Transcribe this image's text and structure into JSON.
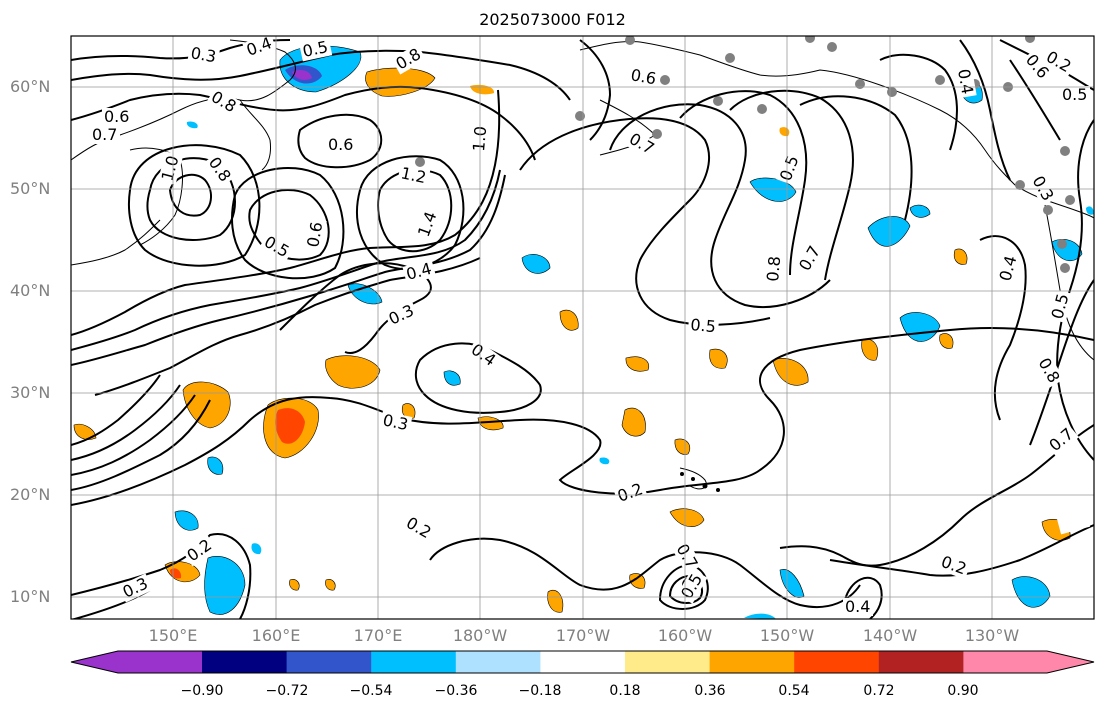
{
  "title": "2025073000 F012",
  "latitude_labels": [
    "60°N",
    "50°N",
    "40°N",
    "30°N",
    "20°N",
    "10°N"
  ],
  "longitude_labels": [
    "150°E",
    "160°E",
    "170°E",
    "180°W",
    "170°W",
    "160°W",
    "150°W",
    "140°W",
    "130°W"
  ],
  "contour_labels": [
    "0.3",
    "0.4",
    "0.5",
    "0.8",
    "0.8",
    "0.6",
    "0.7",
    "0.6",
    "1.0",
    "0.8",
    "1.0",
    "0.5",
    "0.6",
    "1.2",
    "1.4",
    "0.4",
    "0.3",
    "0.5",
    "0.4",
    "0.3",
    "0.2",
    "0.2",
    "0.2",
    "0.3",
    "0.4",
    "0.5",
    "0.7",
    "0.6",
    "0.7",
    "0.5",
    "0.7",
    "0.8",
    "0.4",
    "0.6",
    "0.2",
    "0.5",
    "0.3",
    "0.4",
    "0.5",
    "0.8",
    "0.7",
    "0.2"
  ],
  "colorbar": {
    "tick_labels": [
      "−0.90",
      "−0.72",
      "−0.54",
      "−0.36",
      "−0.18",
      "0.18",
      "0.36",
      "0.54",
      "0.72",
      "0.90"
    ],
    "colors": [
      "#9933cc",
      "#000080",
      "#3355cc",
      "#00bfff",
      "#aee0ff",
      "#ffffff",
      "#ffeb8a",
      "#ffa500",
      "#ff4500",
      "#b22222",
      "#ff88aa"
    ]
  }
}
